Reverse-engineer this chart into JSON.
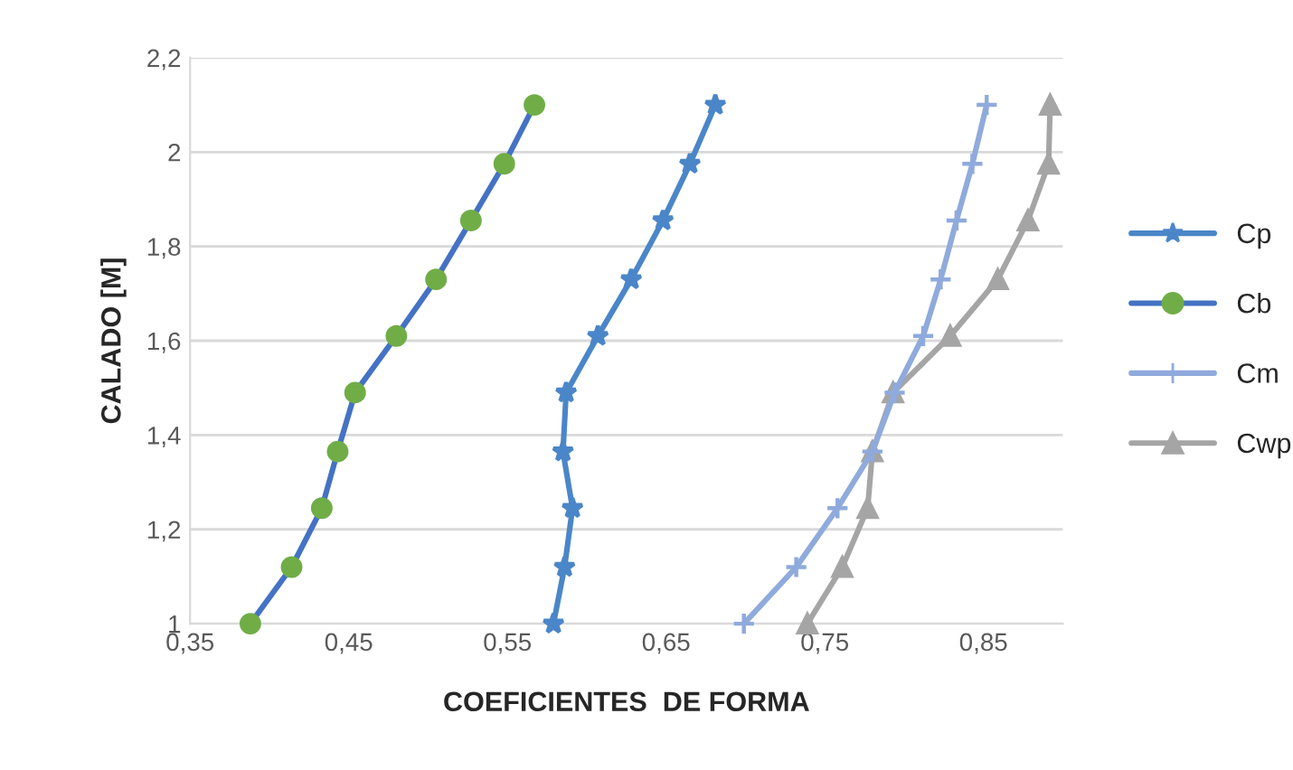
{
  "chart_data": {
    "type": "line",
    "xlabel": "COEFICIENTES  DE FORMA",
    "ylabel": "CALADO [M]",
    "xlim": [
      0.35,
      0.9
    ],
    "ylim": [
      1,
      2.2
    ],
    "xticks": [
      {
        "value": 0.35,
        "label": "0,35"
      },
      {
        "value": 0.45,
        "label": "0,45"
      },
      {
        "value": 0.55,
        "label": "0,55"
      },
      {
        "value": 0.65,
        "label": "0,65"
      },
      {
        "value": 0.75,
        "label": "0,75"
      },
      {
        "value": 0.85,
        "label": "0,85"
      }
    ],
    "yticks": [
      1,
      {
        "value": 1.2,
        "label": "1,2"
      },
      {
        "value": 1.4,
        "label": "1,4"
      },
      {
        "value": 1.6,
        "label": "1,6"
      },
      {
        "value": 1.8,
        "label": "1,8"
      },
      2,
      {
        "value": 2.2,
        "label": "2,2"
      }
    ],
    "grid": "y",
    "legend": "right",
    "series": [
      {
        "name": "Cp",
        "color": "#4a86c8",
        "marker": "star",
        "x": [
          0.579,
          0.586,
          0.591,
          0.585,
          0.587,
          0.607,
          0.628,
          0.648,
          0.665,
          0.681
        ],
        "values": [
          1,
          1.12,
          1.245,
          1.365,
          1.49,
          1.61,
          1.73,
          1.855,
          1.975,
          2.1
        ]
      },
      {
        "name": "Cb",
        "color": "#4472c4",
        "colors": [
          "#70ad47",
          "#70ad47",
          "#70ad47",
          "#70ad47",
          "#70ad47",
          "#70ad47",
          "#70ad47",
          "#70ad47",
          "#70ad47",
          "#70ad47"
        ],
        "marker": "circle",
        "x": [
          0.388,
          0.414,
          0.433,
          0.443,
          0.454,
          0.48,
          0.505,
          0.527,
          0.548,
          0.567
        ],
        "values": [
          1,
          1.12,
          1.245,
          1.365,
          1.49,
          1.61,
          1.73,
          1.855,
          1.975,
          2.1
        ]
      },
      {
        "name": "Cm",
        "color": "#8faadc",
        "marker": "cross",
        "x": [
          0.699,
          0.732,
          0.758,
          0.78,
          0.794,
          0.812,
          0.823,
          0.833,
          0.843,
          0.852
        ],
        "values": [
          1,
          1.12,
          1.245,
          1.365,
          1.49,
          1.61,
          1.73,
          1.855,
          1.975,
          2.1
        ]
      },
      {
        "name": "Cwp",
        "color": "#a5a5a5",
        "marker": "triangle",
        "x": [
          0.739,
          0.761,
          0.777,
          0.78,
          0.793,
          0.829,
          0.859,
          0.878,
          0.891,
          0.892
        ],
        "values": [
          1,
          1.12,
          1.245,
          1.365,
          1.49,
          1.61,
          1.73,
          1.855,
          1.975,
          2.1
        ]
      }
    ]
  }
}
